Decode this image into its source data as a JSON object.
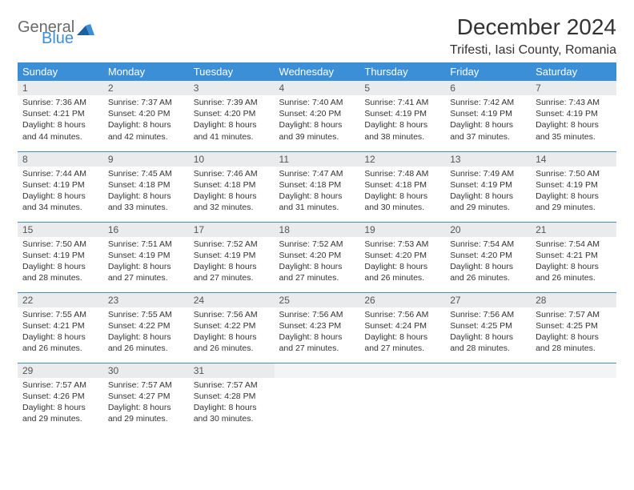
{
  "logo": {
    "part1": "General",
    "part2": "Blue"
  },
  "title": "December 2024",
  "location": "Trifesti, Iasi County, Romania",
  "colors": {
    "header_bg": "#3b8fd6",
    "header_text": "#ffffff",
    "daynum_bg": "#e9ebec",
    "border": "#3b8fd6",
    "logo_gray": "#6a6a6a",
    "logo_blue": "#3b8fd6"
  },
  "weekdays": [
    "Sunday",
    "Monday",
    "Tuesday",
    "Wednesday",
    "Thursday",
    "Friday",
    "Saturday"
  ],
  "weeks": [
    [
      {
        "n": "1",
        "sr": "7:36 AM",
        "ss": "4:21 PM",
        "dl": "8 hours and 44 minutes."
      },
      {
        "n": "2",
        "sr": "7:37 AM",
        "ss": "4:20 PM",
        "dl": "8 hours and 42 minutes."
      },
      {
        "n": "3",
        "sr": "7:39 AM",
        "ss": "4:20 PM",
        "dl": "8 hours and 41 minutes."
      },
      {
        "n": "4",
        "sr": "7:40 AM",
        "ss": "4:20 PM",
        "dl": "8 hours and 39 minutes."
      },
      {
        "n": "5",
        "sr": "7:41 AM",
        "ss": "4:19 PM",
        "dl": "8 hours and 38 minutes."
      },
      {
        "n": "6",
        "sr": "7:42 AM",
        "ss": "4:19 PM",
        "dl": "8 hours and 37 minutes."
      },
      {
        "n": "7",
        "sr": "7:43 AM",
        "ss": "4:19 PM",
        "dl": "8 hours and 35 minutes."
      }
    ],
    [
      {
        "n": "8",
        "sr": "7:44 AM",
        "ss": "4:19 PM",
        "dl": "8 hours and 34 minutes."
      },
      {
        "n": "9",
        "sr": "7:45 AM",
        "ss": "4:18 PM",
        "dl": "8 hours and 33 minutes."
      },
      {
        "n": "10",
        "sr": "7:46 AM",
        "ss": "4:18 PM",
        "dl": "8 hours and 32 minutes."
      },
      {
        "n": "11",
        "sr": "7:47 AM",
        "ss": "4:18 PM",
        "dl": "8 hours and 31 minutes."
      },
      {
        "n": "12",
        "sr": "7:48 AM",
        "ss": "4:18 PM",
        "dl": "8 hours and 30 minutes."
      },
      {
        "n": "13",
        "sr": "7:49 AM",
        "ss": "4:19 PM",
        "dl": "8 hours and 29 minutes."
      },
      {
        "n": "14",
        "sr": "7:50 AM",
        "ss": "4:19 PM",
        "dl": "8 hours and 29 minutes."
      }
    ],
    [
      {
        "n": "15",
        "sr": "7:50 AM",
        "ss": "4:19 PM",
        "dl": "8 hours and 28 minutes."
      },
      {
        "n": "16",
        "sr": "7:51 AM",
        "ss": "4:19 PM",
        "dl": "8 hours and 27 minutes."
      },
      {
        "n": "17",
        "sr": "7:52 AM",
        "ss": "4:19 PM",
        "dl": "8 hours and 27 minutes."
      },
      {
        "n": "18",
        "sr": "7:52 AM",
        "ss": "4:20 PM",
        "dl": "8 hours and 27 minutes."
      },
      {
        "n": "19",
        "sr": "7:53 AM",
        "ss": "4:20 PM",
        "dl": "8 hours and 26 minutes."
      },
      {
        "n": "20",
        "sr": "7:54 AM",
        "ss": "4:20 PM",
        "dl": "8 hours and 26 minutes."
      },
      {
        "n": "21",
        "sr": "7:54 AM",
        "ss": "4:21 PM",
        "dl": "8 hours and 26 minutes."
      }
    ],
    [
      {
        "n": "22",
        "sr": "7:55 AM",
        "ss": "4:21 PM",
        "dl": "8 hours and 26 minutes."
      },
      {
        "n": "23",
        "sr": "7:55 AM",
        "ss": "4:22 PM",
        "dl": "8 hours and 26 minutes."
      },
      {
        "n": "24",
        "sr": "7:56 AM",
        "ss": "4:22 PM",
        "dl": "8 hours and 26 minutes."
      },
      {
        "n": "25",
        "sr": "7:56 AM",
        "ss": "4:23 PM",
        "dl": "8 hours and 27 minutes."
      },
      {
        "n": "26",
        "sr": "7:56 AM",
        "ss": "4:24 PM",
        "dl": "8 hours and 27 minutes."
      },
      {
        "n": "27",
        "sr": "7:56 AM",
        "ss": "4:25 PM",
        "dl": "8 hours and 28 minutes."
      },
      {
        "n": "28",
        "sr": "7:57 AM",
        "ss": "4:25 PM",
        "dl": "8 hours and 28 minutes."
      }
    ],
    [
      {
        "n": "29",
        "sr": "7:57 AM",
        "ss": "4:26 PM",
        "dl": "8 hours and 29 minutes."
      },
      {
        "n": "30",
        "sr": "7:57 AM",
        "ss": "4:27 PM",
        "dl": "8 hours and 29 minutes."
      },
      {
        "n": "31",
        "sr": "7:57 AM",
        "ss": "4:28 PM",
        "dl": "8 hours and 30 minutes."
      },
      null,
      null,
      null,
      null
    ]
  ],
  "labels": {
    "sunrise": "Sunrise:",
    "sunset": "Sunset:",
    "daylight": "Daylight:"
  }
}
